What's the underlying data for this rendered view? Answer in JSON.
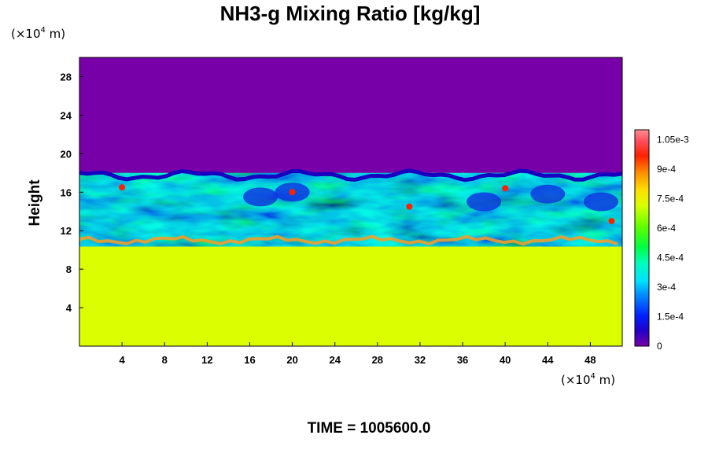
{
  "chart_data": {
    "type": "heatmap",
    "title": "NH3-g Mixing Ratio [kg/kg]",
    "ylabel": "Height",
    "x_unit_label": {
      "prefix": "(×10",
      "exp": "4",
      "suffix": " m)"
    },
    "y_unit_label": {
      "prefix": "(×10",
      "exp": "4",
      "suffix": " m)"
    },
    "xlim": [
      0,
      51
    ],
    "ylim": [
      0,
      30
    ],
    "x_ticks": [
      4,
      8,
      12,
      16,
      20,
      24,
      28,
      32,
      36,
      40,
      44,
      48
    ],
    "y_ticks": [
      4,
      8,
      12,
      16,
      20,
      24,
      28
    ],
    "footer": "TIME = 1005600.0",
    "colorbar": {
      "min": 0,
      "max": 0.0011,
      "tick_values": [
        0,
        0.00015,
        0.0003,
        0.00045,
        0.0006,
        0.00075,
        0.0009,
        0.00105
      ],
      "tick_labels": [
        "0",
        "1.5e-4",
        "3e-4",
        "4.5e-4",
        "6e-4",
        "7.5e-4",
        "9e-4",
        "1.05e-3"
      ]
    },
    "fields": {
      "upper_value": 0,
      "lower_value": 0.00072,
      "top_boundary_height": 18,
      "bottom_boundary_height": 11
    }
  }
}
